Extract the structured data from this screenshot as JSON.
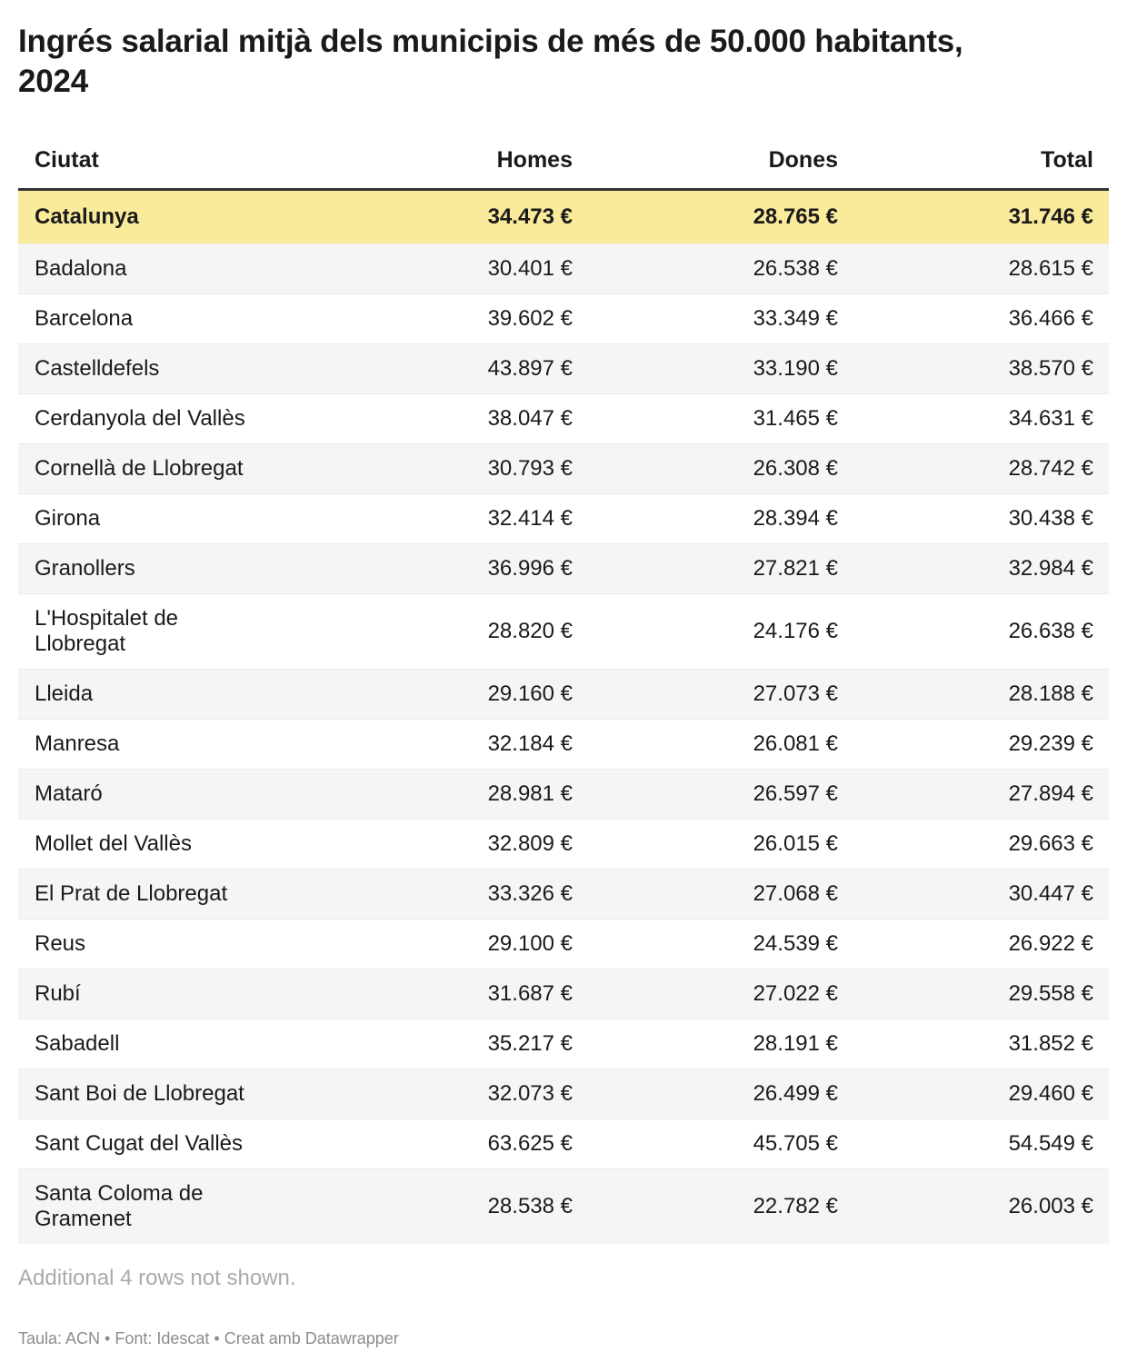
{
  "header": {
    "title": "Ingrés salarial mitjà dels municipis de més de 50.000 habitants, 2024"
  },
  "chart_data": {
    "type": "table",
    "title": "Ingrés salarial mitjà dels municipis de més de 50.000 habitants, 2024",
    "columns": [
      "Ciutat",
      "Homes",
      "Dones",
      "Total"
    ],
    "rows": [
      [
        "Catalunya",
        "34.473 €",
        "28.765 €",
        "31.746 €"
      ],
      [
        "Badalona",
        "30.401 €",
        "26.538 €",
        "28.615 €"
      ],
      [
        "Barcelona",
        "39.602 €",
        "33.349 €",
        "36.466 €"
      ],
      [
        "Castelldefels",
        "43.897 €",
        "33.190 €",
        "38.570 €"
      ],
      [
        "Cerdanyola del Vallès",
        "38.047 €",
        "31.465 €",
        "34.631 €"
      ],
      [
        "Cornellà de Llobregat",
        "30.793 €",
        "26.308 €",
        "28.742 €"
      ],
      [
        "Girona",
        "32.414 €",
        "28.394 €",
        "30.438 €"
      ],
      [
        "Granollers",
        "36.996 €",
        "27.821 €",
        "32.984 €"
      ],
      [
        "L'Hospitalet de Llobregat",
        "28.820 €",
        "24.176 €",
        "26.638 €"
      ],
      [
        "Lleida",
        "29.160 €",
        "27.073 €",
        "28.188 €"
      ],
      [
        "Manresa",
        "32.184 €",
        "26.081 €",
        "29.239 €"
      ],
      [
        "Mataró",
        "28.981 €",
        "26.597 €",
        "27.894 €"
      ],
      [
        "Mollet del Vallès",
        "32.809 €",
        "26.015 €",
        "29.663 €"
      ],
      [
        "El Prat de Llobregat",
        "33.326 €",
        "27.068 €",
        "30.447 €"
      ],
      [
        "Reus",
        "29.100 €",
        "24.539 €",
        "26.922 €"
      ],
      [
        "Rubí",
        "31.687 €",
        "27.022 €",
        "29.558 €"
      ],
      [
        "Sabadell",
        "35.217 €",
        "28.191 €",
        "31.852 €"
      ],
      [
        "Sant Boi de Llobregat",
        "32.073 €",
        "26.499 €",
        "29.460 €"
      ],
      [
        "Sant Cugat del Vallès",
        "63.625 €",
        "45.705 €",
        "54.549 €"
      ],
      [
        "Santa Coloma de Gramenet",
        "28.538 €",
        "22.782 €",
        "26.003 €"
      ]
    ],
    "highlighted_row": "Catalunya",
    "layout_hints": {
      "value_alignment": "right",
      "zebra_striping": true,
      "legend_position": "none",
      "grid": "row-dividers"
    }
  },
  "notes": {
    "additional_rows": "Additional 4 rows not shown."
  },
  "footer": {
    "credit": "Taula: ACN • Font: Idescat • Creat amb Datawrapper"
  },
  "colors": {
    "highlight_row_bg": "#FAEA9C",
    "stripe_row_bg": "#F5F5F5",
    "header_rule": "#333333",
    "row_divider": "#E9E9E9",
    "body_text": "#1A1A1A",
    "note_text": "#AAAAAA",
    "credit_text": "#8C8C8C"
  }
}
